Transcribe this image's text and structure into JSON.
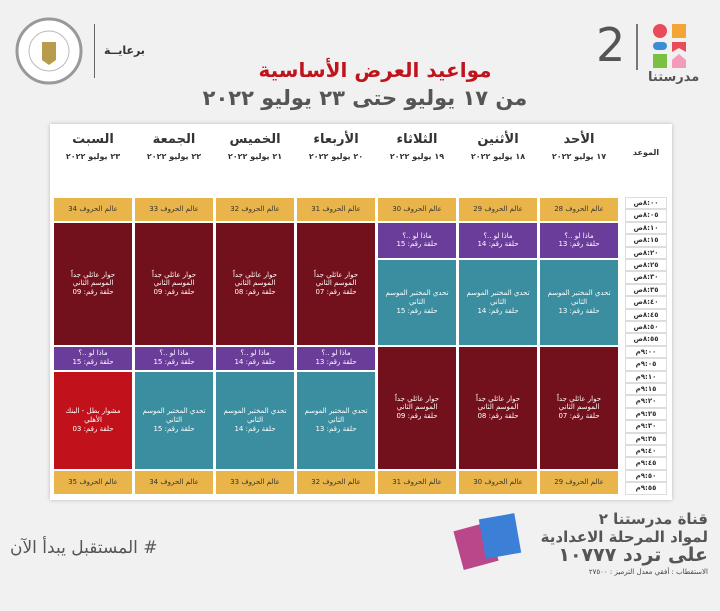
{
  "header": {
    "brand": "مدرستنا",
    "channel_number": "2",
    "sponsor": "برعايــة",
    "title": "مواعيد العرض الأساسية",
    "subtitle": "من ١٧ يوليو حتى ٢٣ يوليو ٢٠٢٢"
  },
  "table": {
    "time_header": "الموعد",
    "times": [
      "٨:٠٠ص",
      "٨:٠٥ص",
      "٨:١٠ص",
      "٨:١٥ص",
      "٨:٢٠ص",
      "٨:٢٥ص",
      "٨:٣٠ص",
      "٨:٣٥ص",
      "٨:٤٠ص",
      "٨:٤٥ص",
      "٨:٥٠ص",
      "٨:٥٥ص",
      "٩:٠٠م",
      "٩:٠٥م",
      "٩:١٠م",
      "٩:١٥م",
      "٩:٢٠م",
      "٩:٢٥م",
      "٩:٣٠م",
      "٩:٣٥م",
      "٩:٤٠م",
      "٩:٤٥م",
      "٩:٥٠م",
      "٩:٥٥م"
    ],
    "days": [
      {
        "name": "الأحد",
        "date": "١٧ يوليو ٢٠٢٢",
        "programs": [
          {
            "title": "عالم الحروف 28",
            "color": "#e9b54a"
          },
          {
            "title": "ماذا لو ..؟",
            "episode": "حلقة رقم: 13",
            "color": "#6a3d9a"
          },
          {
            "title": "تحدي المختبر الموسم الثاني",
            "episode": "حلقة رقم: 13",
            "color": "#3b8da0"
          },
          {
            "title": "حوار عائلي جداً الموسم الثاني",
            "episode": "حلقة رقم: 07",
            "color": "#72101c"
          },
          {
            "title": "عالم الحروف 29",
            "color": "#e9b54a"
          }
        ]
      },
      {
        "name": "الأثنين",
        "date": "١٨ يوليو ٢٠٢٢",
        "programs": [
          {
            "title": "عالم الحروف 29",
            "color": "#e9b54a"
          },
          {
            "title": "ماذا لو ..؟",
            "episode": "حلقة رقم: 14",
            "color": "#6a3d9a"
          },
          {
            "title": "تحدي المختبر الموسم الثاني",
            "episode": "حلقة رقم: 14",
            "color": "#3b8da0"
          },
          {
            "title": "حوار عائلي جداً الموسم الثاني",
            "episode": "حلقة رقم: 08",
            "color": "#72101c"
          },
          {
            "title": "عالم الحروف 30",
            "color": "#e9b54a"
          }
        ]
      },
      {
        "name": "الثلاثاء",
        "date": "١٩ يوليو ٢٠٢٢",
        "programs": [
          {
            "title": "عالم الحروف 30",
            "color": "#e9b54a"
          },
          {
            "title": "ماذا لو ..؟",
            "episode": "حلقة رقم: 15",
            "color": "#6a3d9a"
          },
          {
            "title": "تحدي المختبر الموسم الثاني",
            "episode": "حلقة رقم: 15",
            "color": "#3b8da0"
          },
          {
            "title": "حوار عائلي جداً الموسم الثاني",
            "episode": "حلقة رقم: 09",
            "color": "#72101c"
          },
          {
            "title": "عالم الحروف 31",
            "color": "#e9b54a"
          }
        ]
      },
      {
        "name": "الأربعاء",
        "date": "٢٠ يوليو ٢٠٢٢",
        "programs": [
          {
            "title": "عالم الحروف 31",
            "color": "#e9b54a"
          },
          {
            "title": "حوار عائلي جداً الموسم الثاني",
            "episode": "حلقة رقم: 07",
            "color": "#72101c"
          },
          {
            "title": "ماذا لو ..؟",
            "episode": "حلقة رقم: 13",
            "color": "#6a3d9a"
          },
          {
            "title": "تحدي المختبر الموسم الثاني",
            "episode": "حلقة رقم: 13",
            "color": "#3b8da0"
          },
          {
            "title": "عالم الحروف 32",
            "color": "#e9b54a"
          }
        ]
      },
      {
        "name": "الخميس",
        "date": "٢١ يوليو ٢٠٢٢",
        "programs": [
          {
            "title": "عالم الحروف 32",
            "color": "#e9b54a"
          },
          {
            "title": "حوار عائلي جداً الموسم الثاني",
            "episode": "حلقة رقم: 08",
            "color": "#72101c"
          },
          {
            "title": "ماذا لو ..؟",
            "episode": "حلقة رقم: 14",
            "color": "#6a3d9a"
          },
          {
            "title": "تحدي المختبر الموسم الثاني",
            "episode": "حلقة رقم: 14",
            "color": "#3b8da0"
          },
          {
            "title": "عالم الحروف 33",
            "color": "#e9b54a"
          }
        ]
      },
      {
        "name": "الجمعة",
        "date": "٢٢ يوليو ٢٠٢٢",
        "programs": [
          {
            "title": "عالم الحروف 33",
            "color": "#e9b54a"
          },
          {
            "title": "حوار عائلي جداً الموسم الثاني",
            "episode": "حلقة رقم: 09",
            "color": "#72101c"
          },
          {
            "title": "ماذا لو ..؟",
            "episode": "حلقة رقم: 15",
            "color": "#6a3d9a"
          },
          {
            "title": "تحدي المختبر الموسم الثاني",
            "episode": "حلقة رقم: 15",
            "color": "#3b8da0"
          },
          {
            "title": "عالم الحروف 34",
            "color": "#e9b54a"
          }
        ]
      },
      {
        "name": "السبت",
        "date": "٢٣ يوليو ٢٠٢٢",
        "programs": [
          {
            "title": "عالم الحروف 34",
            "color": "#e9b54a"
          },
          {
            "title": "حوار عائلي جداً الموسم الثاني",
            "episode": "حلقة رقم: 09",
            "color": "#72101c"
          },
          {
            "title": "ماذا لو ..؟",
            "episode": "حلقة رقم: 15",
            "color": "#6a3d9a"
          },
          {
            "title": "مشوار بطل - البنك الأهلي",
            "episode": "حلقة رقم: 03",
            "color": "#c1121c"
          },
          {
            "title": "عالم الحروف 35",
            "color": "#e9b54a"
          }
        ]
      }
    ]
  },
  "footer": {
    "hashtag": "# المستقبل يبدأ الآن",
    "channel": "قناة مدرستنا ٢",
    "stage": "لمواد المرحلة الاعدادية",
    "frequency": "على تردد ١٠٧٧٧",
    "specs": "الاستقطاب : أفقي معدل الترميز : ٢٧٥٠٠"
  }
}
